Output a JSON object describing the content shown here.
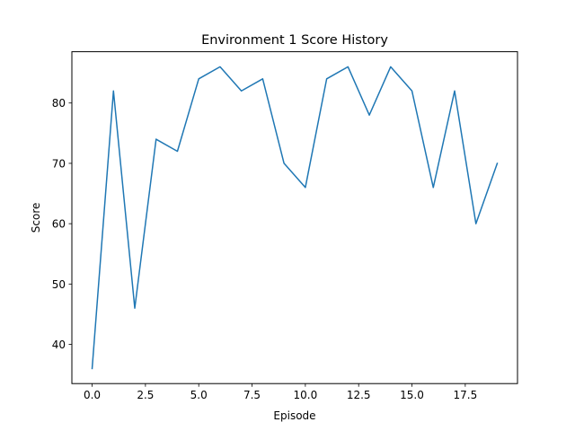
{
  "chart_data": {
    "type": "line",
    "title": "Environment 1 Score History",
    "xlabel": "Episode",
    "ylabel": "Score",
    "xlim": [
      -0.95,
      19.95
    ],
    "ylim": [
      33.5,
      88.5
    ],
    "xticks": [
      0.0,
      2.5,
      5.0,
      7.5,
      10.0,
      12.5,
      15.0,
      17.5
    ],
    "xtick_labels": [
      "0.0",
      "2.5",
      "5.0",
      "7.5",
      "10.0",
      "12.5",
      "15.0",
      "17.5"
    ],
    "yticks": [
      40,
      50,
      60,
      70,
      80
    ],
    "ytick_labels": [
      "40",
      "50",
      "60",
      "70",
      "80"
    ],
    "grid": false,
    "series": [
      {
        "color": "#1f77b4",
        "x": [
          0,
          1,
          2,
          3,
          4,
          5,
          6,
          7,
          8,
          9,
          10,
          11,
          12,
          13,
          14,
          15,
          16,
          17,
          18,
          19
        ],
        "values": [
          36,
          82,
          46,
          74,
          72,
          84,
          86,
          82,
          84,
          70,
          66,
          84,
          86,
          78,
          86,
          82,
          66,
          82,
          60,
          70
        ]
      }
    ]
  }
}
